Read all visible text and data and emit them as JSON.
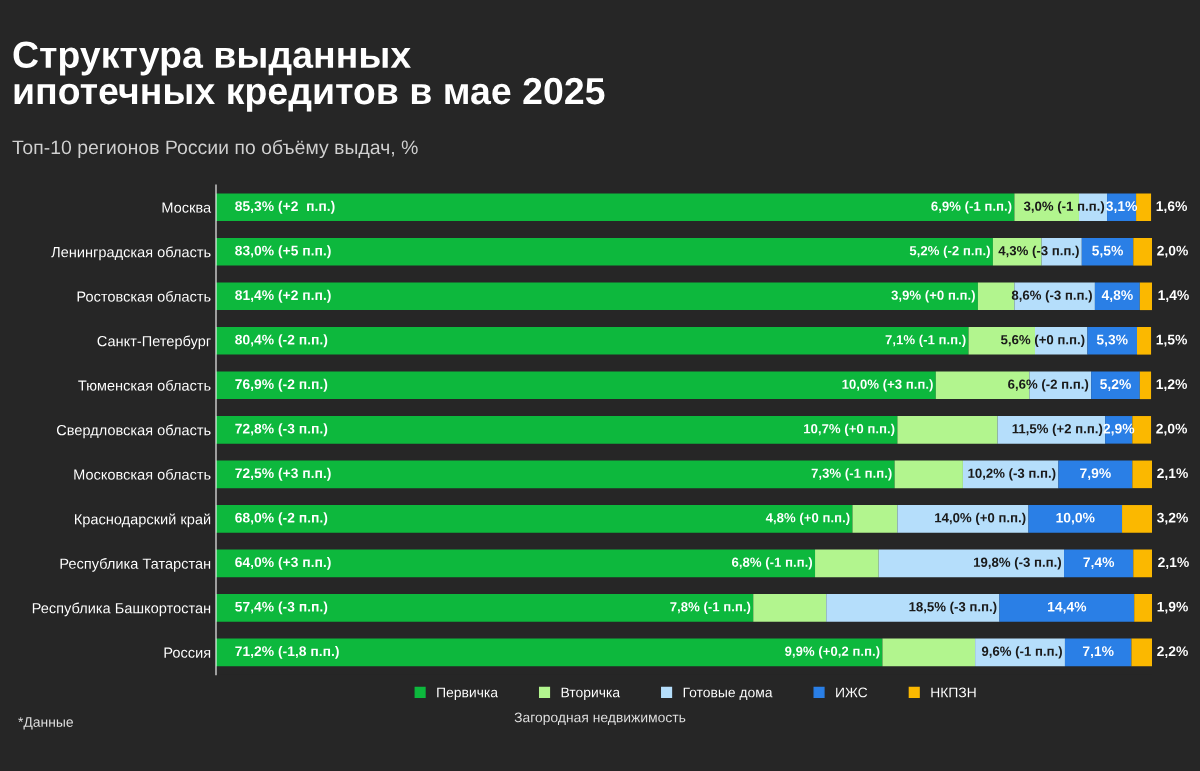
{
  "chart_data": {
    "type": "bar",
    "orientation": "horizontal",
    "stacked": true,
    "title": "Структура выданных\nипотечных кредитов в мае 2025",
    "subtitle": "Топ-10 регионов России по объёму выдач, %",
    "categories": [
      "Москва",
      "Ленинградская область",
      "Ростовская область",
      "Санкт-Петербург",
      "Тюменская область",
      "Свердловская область",
      "Московская область",
      "Краснодарский край",
      "Республика Татарстан",
      "Республика Башкортостан",
      "Россия"
    ],
    "xlim": [
      0,
      100
    ],
    "tick_labels": "y",
    "grid": false,
    "legend": "bottom",
    "series": [
      {
        "name": "Первичка",
        "color": "#0db83d",
        "values": [
          85.3,
          83.0,
          81.4,
          80.4,
          76.9,
          72.8,
          72.5,
          68.0,
          64.0,
          57.4,
          71.2
        ],
        "value_labels": [
          "85,3% (+2  п.п.)",
          "83,0% (+5 п.п.)",
          "81,4% (+2 п.п.)",
          "80,4% (-2 п.п.)",
          "76,9% (-2 п.п.)",
          "72,8% (-3 п.п.)",
          "72,5% (+3 п.п.)",
          "68,0% (-2 п.п.)",
          "64,0% (+3 п.п.)",
          "57,4% (-3 п.п.)",
          "71,2% (-1,8 п.п.)"
        ]
      },
      {
        "name": "Вторичка",
        "color": "#b2f58e",
        "values": [
          6.9,
          5.2,
          3.9,
          7.1,
          10.0,
          10.7,
          7.3,
          4.8,
          6.8,
          7.8,
          9.9
        ],
        "value_labels": [
          "6,9% (-1 п.п.)",
          "5,2% (-2 п.п.)",
          "3,9% (+0 п.п.)",
          "7,1% (-1 п.п.)",
          "10,0% (+3 п.п.)",
          "10,7% (+0 п.п.)",
          "7,3% (-1 п.п.)",
          "4,8% (+0 п.п.)",
          "6,8% (-1 п.п.)",
          "7,8% (-1 п.п.)",
          "9,9% (+0,2 п.п.)"
        ]
      },
      {
        "name": "Готовые дома",
        "color": "#b5defb",
        "values": [
          3.0,
          4.3,
          8.6,
          5.6,
          6.6,
          11.5,
          10.2,
          14.0,
          19.8,
          18.5,
          9.6
        ],
        "value_labels": [
          "3,0% (-1 п.п.)",
          "4,3% (-3 п.п.)",
          "8,6% (-3 п.п.)",
          "5,6% (+0 п.п.)",
          "6,6% (-2 п.п.)",
          "11,5% (+2 п.п.)",
          "10,2% (-3 п.п.)",
          "14,0% (+0 п.п.)",
          "19,8% (-3 п.п.)",
          "18,5% (-3 п.п.)",
          "9,6% (-1 п.п.)"
        ]
      },
      {
        "name": "ИЖС",
        "color": "#2a7fe6",
        "values": [
          3.1,
          5.5,
          4.8,
          5.3,
          5.2,
          2.9,
          7.9,
          10.0,
          7.4,
          14.4,
          7.1
        ],
        "value_labels": [
          "3,1%",
          "5,5%",
          "4,8%",
          "5,3%",
          "5,2%",
          "2,9%",
          "7,9%",
          "10,0%",
          "7,4%",
          "14,4%",
          "7,1%"
        ]
      },
      {
        "name": "НКПЗН",
        "color": "#fbb800",
        "values": [
          1.6,
          2.0,
          1.4,
          1.5,
          1.2,
          2.0,
          2.1,
          3.2,
          2.1,
          1.9,
          2.2
        ],
        "value_labels": [
          "1,6%",
          "2,0%",
          "1,4%",
          "1,5%",
          "1,2%",
          "2,0%",
          "2,1%",
          "3,2%",
          "2,1%",
          "1,9%",
          "2,2%"
        ]
      }
    ],
    "annotations": [
      "Загородная недвижимость",
      "*Данные"
    ]
  }
}
